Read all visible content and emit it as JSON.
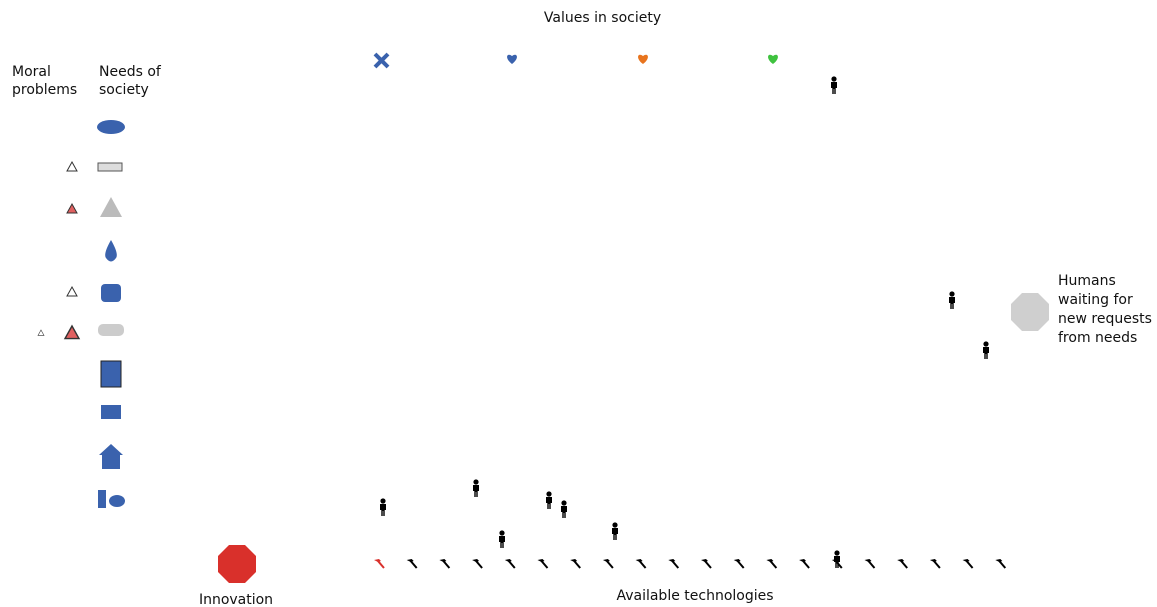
{
  "header": {
    "title": "Values in society"
  },
  "columns": {
    "moral": "Moral problems",
    "needs": "Needs of society"
  },
  "labels": {
    "waiting": "Humans waiting for new requests from needs",
    "innovation": "Innovation",
    "technologies": "Available technologies"
  }
}
